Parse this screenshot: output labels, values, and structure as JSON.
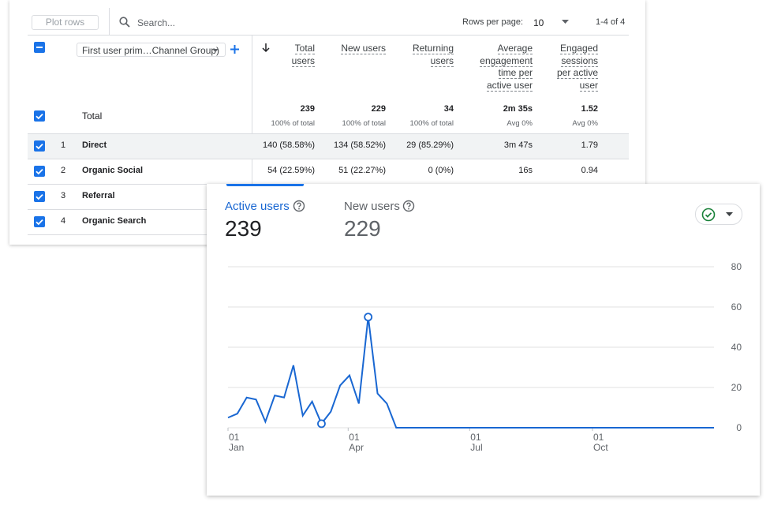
{
  "toolbar": {
    "plot_rows": "Plot rows",
    "search": "Search...",
    "rows_per_page_label": "Rows per page:",
    "rows_per_page": "10",
    "range": "1-4 of 4"
  },
  "table": {
    "dimension": "First user prim…Channel Group)",
    "columns": [
      "Total users",
      "New users",
      "Returning users",
      "Average engagement time per active user",
      "Engaged sessions per active user"
    ],
    "total": {
      "label": "Total",
      "values": [
        "239",
        "229",
        "34",
        "2m 35s",
        "1.52"
      ],
      "notes": [
        "100% of total",
        "100% of total",
        "100% of total",
        "Avg 0%",
        "Avg 0%"
      ]
    },
    "rows": [
      {
        "index": "1",
        "name": "Direct",
        "values": [
          "140 (58.58%)",
          "134 (58.52%)",
          "29 (85.29%)",
          "3m 47s",
          "1.79"
        ]
      },
      {
        "index": "2",
        "name": "Organic Social",
        "values": [
          "54 (22.59%)",
          "51 (22.27%)",
          "0 (0%)",
          "16s",
          "0.94"
        ]
      },
      {
        "index": "3",
        "name": "Referral"
      },
      {
        "index": "4",
        "name": "Organic Search"
      }
    ]
  },
  "tabs": [
    {
      "label": "Active users",
      "value": "239"
    },
    {
      "label": "New users",
      "value": "229"
    }
  ],
  "chart_data": {
    "type": "line",
    "color": "#1967d2",
    "x": [
      0,
      7,
      14,
      21,
      28,
      35,
      42,
      49,
      56,
      63,
      70,
      77,
      84,
      91,
      98,
      105,
      112,
      119,
      126,
      133,
      140,
      147,
      154,
      161,
      168,
      175,
      182,
      189,
      196,
      203,
      210,
      217,
      224,
      231,
      238,
      245,
      252,
      259,
      266,
      273,
      280,
      287,
      294,
      301,
      308,
      315,
      322,
      329,
      336,
      343,
      350,
      357,
      364
    ],
    "values": [
      5,
      7,
      15,
      14,
      3,
      16,
      15,
      31,
      6,
      13,
      2,
      8,
      21,
      26,
      12,
      55,
      17,
      12,
      0,
      0,
      0,
      0,
      0,
      0,
      0,
      0,
      0,
      0,
      0,
      0,
      0,
      0,
      0,
      0,
      0,
      0,
      0,
      0,
      0,
      0,
      0,
      0,
      0,
      0,
      0,
      0,
      0,
      0,
      0,
      0,
      0,
      0,
      0
    ],
    "markers": [
      10,
      15
    ],
    "xlim": [
      0,
      364
    ],
    "xticks": [
      {
        "value": 0,
        "label": "01"
      },
      {
        "value": 90,
        "label": "01"
      },
      {
        "value": 181,
        "label": "01"
      },
      {
        "value": 273,
        "label": "01"
      }
    ],
    "xtick_months": [
      "Jan",
      "Apr",
      "Jul",
      "Oct"
    ],
    "ylim": [
      0,
      80
    ],
    "yticks": [
      0,
      20,
      40,
      60,
      80
    ],
    "grid": true
  }
}
